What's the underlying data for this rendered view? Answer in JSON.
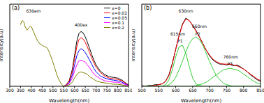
{
  "chart_data": [
    {
      "type": "line",
      "title": "(a)",
      "x_label": "Wavelength(nm)",
      "y_label": "Intensity(a.u)",
      "xlim": [
        300,
        850
      ],
      "xticks": [
        300,
        350,
        400,
        450,
        500,
        550,
        600,
        650,
        700,
        750,
        800,
        850
      ],
      "ylim": [
        0,
        120
      ],
      "tick_labels": "x",
      "grid": false,
      "legend": "upper right",
      "annotations": [
        {
          "text": "630em",
          "x": 410,
          "y": 110
        },
        {
          "text": "400ex",
          "x": 630,
          "y": 90
        }
      ],
      "series": [
        {
          "color": "#808000",
          "x": [
            350,
            355,
            360,
            365,
            370,
            380,
            390,
            395,
            400,
            410,
            420,
            430,
            440,
            450,
            460,
            470,
            480,
            490,
            500,
            510,
            520,
            530,
            540,
            550
          ],
          "values": [
            90,
            95,
            96,
            94,
            88,
            82,
            86,
            88,
            87,
            80,
            72,
            66,
            62,
            60,
            58,
            57,
            52,
            44,
            35,
            25,
            15,
            8,
            3,
            0
          ]
        },
        {
          "name": "x=0",
          "color": "#000000",
          "x": [
            550,
            560,
            575,
            590,
            600,
            610,
            620,
            630,
            640,
            650,
            660,
            670,
            680,
            690,
            700,
            720,
            740,
            760,
            780,
            800,
            820,
            840,
            850
          ],
          "values": [
            0,
            2,
            8,
            25,
            45,
            65,
            77,
            80,
            78,
            72,
            64,
            55,
            46,
            38,
            31,
            22,
            17,
            14,
            13,
            12,
            9,
            4,
            2
          ]
        },
        {
          "name": "x=0.02",
          "color": "#ff0000",
          "x": [
            550,
            560,
            575,
            590,
            600,
            610,
            620,
            630,
            640,
            650,
            660,
            670,
            680,
            690,
            700,
            720,
            740,
            760,
            780,
            800,
            820,
            840,
            850
          ],
          "values": [
            0,
            2,
            7,
            22,
            40,
            57,
            68,
            71,
            69,
            64,
            57,
            49,
            41,
            34,
            28,
            20,
            15,
            12,
            11,
            10,
            8,
            4,
            2
          ]
        },
        {
          "name": "x=0.05",
          "color": "#0000ff",
          "x": [
            550,
            560,
            575,
            590,
            600,
            610,
            620,
            630,
            640,
            650,
            660,
            670,
            680,
            690,
            700,
            720,
            740,
            760,
            780,
            800,
            820,
            840,
            850
          ],
          "values": [
            0,
            1,
            5,
            17,
            31,
            44,
            52,
            55,
            53,
            49,
            44,
            38,
            32,
            26,
            21,
            15,
            12,
            10,
            9,
            8,
            6,
            3,
            1
          ]
        },
        {
          "name": "x=0.1",
          "color": "#ff00ff",
          "x": [
            550,
            560,
            575,
            590,
            600,
            610,
            620,
            630,
            640,
            650,
            660,
            670,
            680,
            690,
            700,
            720,
            740,
            760,
            780,
            800,
            820,
            840,
            850
          ],
          "values": [
            0,
            1,
            4,
            12,
            22,
            31,
            37,
            38,
            37,
            35,
            31,
            27,
            22,
            18,
            15,
            11,
            8,
            7,
            6,
            6,
            4,
            2,
            1
          ]
        },
        {
          "name": "x=0.2",
          "color": "#808000",
          "x": [
            550,
            560,
            575,
            590,
            600,
            610,
            620,
            630,
            640,
            650,
            660,
            670,
            680,
            690,
            700,
            720,
            740,
            760,
            780,
            800,
            820,
            840,
            850
          ],
          "values": [
            0,
            1,
            2,
            6,
            12,
            17,
            20,
            21,
            20,
            19,
            17,
            14,
            12,
            10,
            8,
            6,
            5,
            4,
            3,
            3,
            2,
            1,
            0
          ]
        }
      ]
    },
    {
      "type": "line",
      "title": "(b)",
      "x_label": "Wavelength(nm)",
      "y_label": "Intensity(a.u)",
      "xlim": [
        500,
        850
      ],
      "xticks": [
        500,
        550,
        600,
        650,
        700,
        750,
        800,
        850
      ],
      "ylim": [
        0,
        100
      ],
      "tick_labels": "x",
      "grid": false,
      "annotations": [
        {
          "text": "630nm",
          "x": 630,
          "y": 92
        },
        {
          "text": "615nm",
          "x": 606,
          "y": 64
        },
        {
          "text": "P1",
          "x": 613,
          "y": 55
        },
        {
          "text": "660nm",
          "x": 670,
          "y": 73
        },
        {
          "text": "P2",
          "x": 665,
          "y": 64
        },
        {
          "text": "760nm",
          "x": 762,
          "y": 36
        },
        {
          "text": "P3",
          "x": 760,
          "y": 27
        }
      ],
      "x": [
        500,
        510,
        520,
        530,
        540,
        550,
        560,
        570,
        580,
        590,
        600,
        610,
        620,
        630,
        640,
        650,
        660,
        670,
        680,
        690,
        700,
        710,
        720,
        730,
        740,
        750,
        760,
        770,
        780,
        790,
        800,
        810,
        820,
        830,
        840,
        850
      ],
      "series": [
        {
          "color": "#000000",
          "values": [
            1,
            0,
            1,
            1,
            2,
            2,
            3,
            6,
            14,
            28,
            45,
            62,
            76,
            83,
            80,
            74,
            68,
            60,
            52,
            44,
            37,
            32,
            29,
            27,
            27,
            26,
            27,
            25,
            26,
            24,
            21,
            18,
            14,
            11,
            8,
            6
          ]
        },
        {
          "color": "#ff0000",
          "values": [
            0,
            0,
            0,
            1,
            1,
            2,
            3,
            6,
            13,
            27,
            45,
            62,
            75,
            82,
            80,
            74,
            67,
            60,
            52,
            44,
            38,
            33,
            30,
            28,
            27,
            27,
            27,
            26,
            25,
            23,
            21,
            18,
            15,
            12,
            9,
            7
          ]
        },
        {
          "color": "#33cc33",
          "values": [
            0,
            0,
            0,
            0,
            0,
            0,
            0,
            2,
            8,
            20,
            36,
            48,
            50,
            40,
            24,
            10,
            3,
            1,
            0,
            0,
            0,
            0,
            0,
            0,
            0,
            0,
            0,
            0,
            0,
            0,
            0,
            0,
            0,
            0,
            0,
            0
          ]
        },
        {
          "color": "#33cc33",
          "values": [
            0,
            0,
            0,
            0,
            0,
            0,
            0,
            0,
            2,
            5,
            11,
            20,
            31,
            42,
            52,
            58,
            60,
            57,
            50,
            40,
            30,
            21,
            13,
            8,
            4,
            2,
            1,
            0,
            0,
            0,
            0,
            0,
            0,
            0,
            0,
            0
          ]
        },
        {
          "color": "#33cc33",
          "values": [
            0,
            0,
            0,
            0,
            0,
            0,
            0,
            0,
            0,
            0,
            0,
            0,
            0,
            0,
            0,
            0,
            1,
            2,
            3,
            5,
            8,
            11,
            14,
            17,
            20,
            21,
            22,
            21,
            20,
            18,
            15,
            12,
            9,
            6,
            4,
            3
          ]
        }
      ]
    }
  ]
}
